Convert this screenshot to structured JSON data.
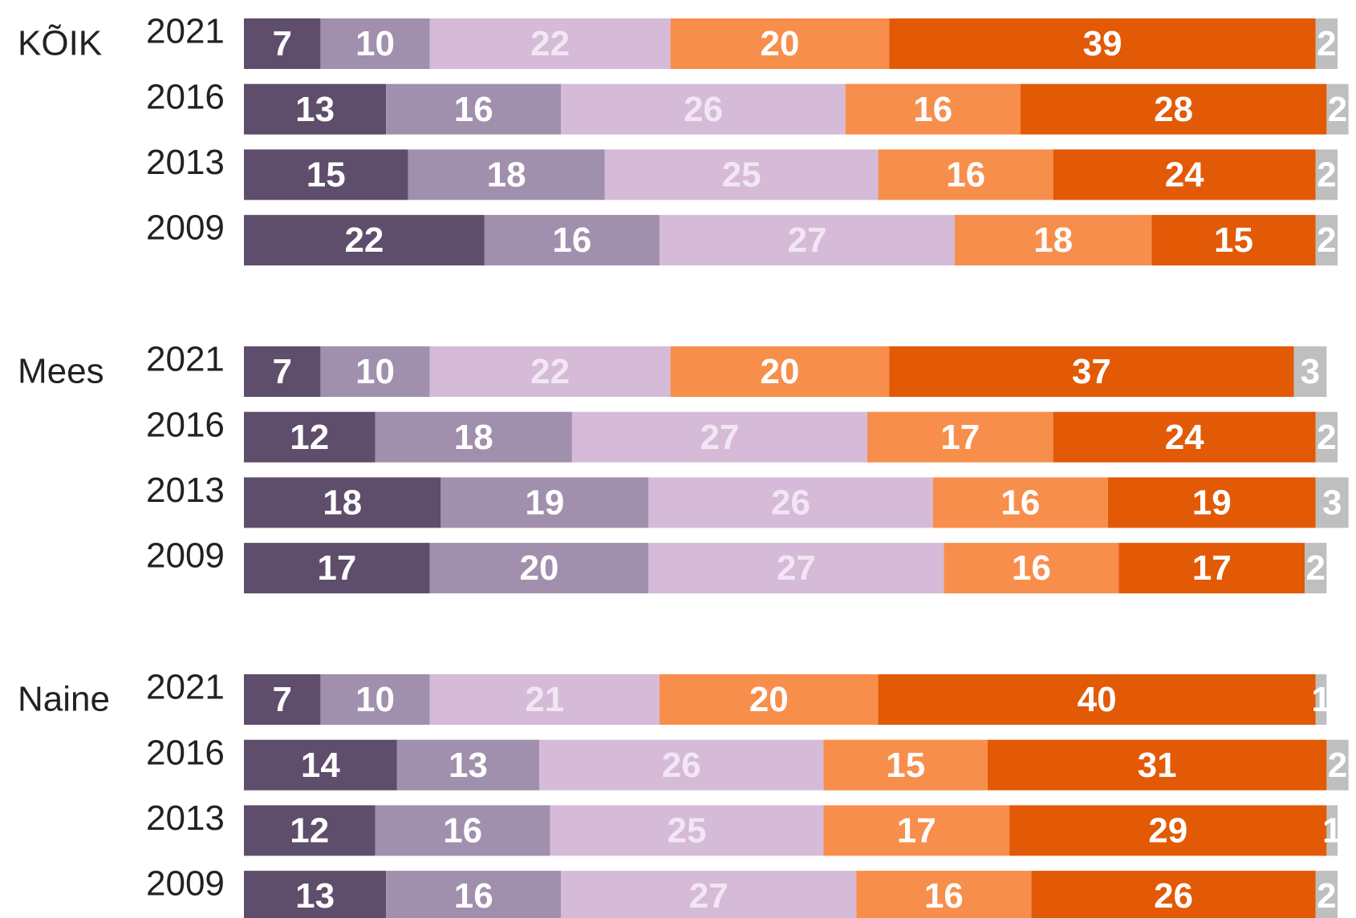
{
  "chart_data": {
    "type": "bar",
    "orientation": "horizontal",
    "stacked": true,
    "grid": false,
    "legend": "none",
    "xlim": [
      0,
      100
    ],
    "title": "",
    "xlabel": "",
    "ylabel": "",
    "segment_colors": [
      "#5e4d6b",
      "#a08fad",
      "#d5bbd8",
      "#f88e4b",
      "#e25906",
      "#bfbfbf"
    ],
    "value_label_colors": [
      "#ffffff",
      "#ffffff",
      "#f3e6f4",
      "#ffffff",
      "#ffffff",
      "#ffffff"
    ],
    "groups": [
      {
        "label": "KÕIK",
        "rows": [
          {
            "year": "2021",
            "values": [
              7,
              10,
              22,
              20,
              39,
              2
            ]
          },
          {
            "year": "2016",
            "values": [
              13,
              16,
              26,
              16,
              28,
              2
            ]
          },
          {
            "year": "2013",
            "values": [
              15,
              18,
              25,
              16,
              24,
              2
            ]
          },
          {
            "year": "2009",
            "values": [
              22,
              16,
              27,
              18,
              15,
              2
            ]
          }
        ]
      },
      {
        "label": "Mees",
        "rows": [
          {
            "year": "2021",
            "values": [
              7,
              10,
              22,
              20,
              37,
              3
            ]
          },
          {
            "year": "2016",
            "values": [
              12,
              18,
              27,
              17,
              24,
              2
            ]
          },
          {
            "year": "2013",
            "values": [
              18,
              19,
              26,
              16,
              19,
              3
            ]
          },
          {
            "year": "2009",
            "values": [
              17,
              20,
              27,
              16,
              17,
              2
            ]
          }
        ]
      },
      {
        "label": "Naine",
        "rows": [
          {
            "year": "2021",
            "values": [
              7,
              10,
              21,
              20,
              40,
              1
            ]
          },
          {
            "year": "2016",
            "values": [
              14,
              13,
              26,
              15,
              31,
              2
            ]
          },
          {
            "year": "2013",
            "values": [
              12,
              16,
              25,
              17,
              29,
              1
            ]
          },
          {
            "year": "2009",
            "values": [
              13,
              16,
              27,
              16,
              26,
              2
            ]
          }
        ]
      }
    ]
  }
}
